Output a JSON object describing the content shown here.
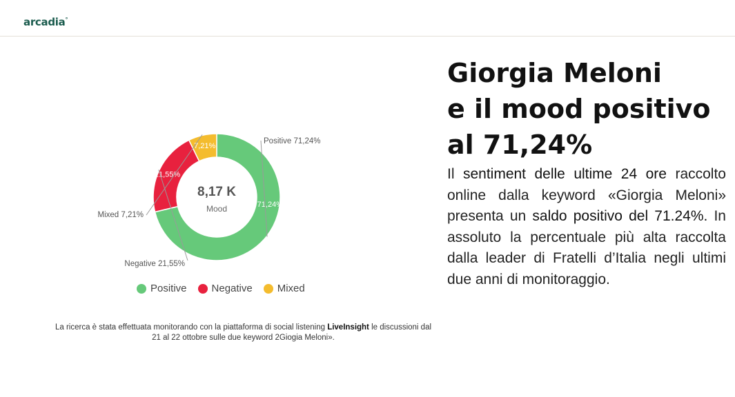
{
  "header": {
    "logo_text": "arcadia",
    "logo_mark": "°"
  },
  "chart_data": {
    "type": "pie",
    "donut": true,
    "center_value": "8,17 K",
    "center_label": "Mood",
    "series": [
      {
        "name": "Positive",
        "value": 71.24,
        "inner_label": "71,24%",
        "outer_label": "Positive 71,24%",
        "color": "#66c97a"
      },
      {
        "name": "Negative",
        "value": 21.55,
        "inner_label": "21,55%",
        "outer_label": "Negative 21,55%",
        "color": "#e8213e"
      },
      {
        "name": "Mixed",
        "value": 7.21,
        "inner_label": "7,21%",
        "outer_label": "Mixed 7,21%",
        "color": "#f4bc2e"
      }
    ],
    "legend": [
      "Positive",
      "Negative",
      "Mixed"
    ],
    "legend_position": "bottom"
  },
  "note": {
    "prefix": "La ricerca è stata effettuata monitorando con la piattaforma di social listening ",
    "brand": "LiveInsight",
    "suffix": " le discussioni dal",
    "line2": "21 al 22 ottobre sulle due keyword 2Giogia Meloni»."
  },
  "headline": {
    "line1": "Giorgia Meloni",
    "line2": "e il mood positivo",
    "line3": "al 71,24%"
  },
  "body": {
    "t1": "Il ",
    "h1": "sentiment delle ultime 24 ore",
    "t2": " raccolto online dalla keyword «Giorgia Meloni» presenta un ",
    "h2": "saldo positivo del 71.24%.",
    "t3": " In assoluto la percentuale più alta raccolta dalla leader di Fratelli d’Italia negli ultimi due anni di monitoraggio."
  }
}
